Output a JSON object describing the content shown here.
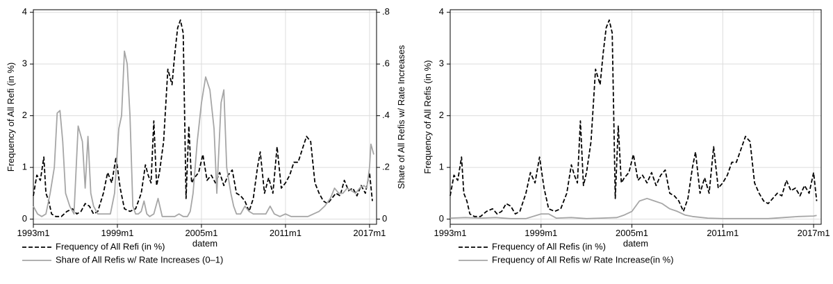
{
  "chart_data": [
    {
      "type": "line",
      "xlabel": "datem",
      "ylabel": "Frequency of All Refi (in %)",
      "ylabel_right": "Share of All Refis w/ Rate Increases",
      "xlim": [
        1993.0,
        2017.5
      ],
      "ylim": [
        -0.1,
        4.05
      ],
      "ylim_right": [
        -0.02,
        0.81
      ],
      "xticks": [
        1993,
        1999,
        2005,
        2011,
        2017
      ],
      "xtick_labels": [
        "1993m1",
        "1999m1",
        "2005m1",
        "2011m1",
        "2017m1"
      ],
      "yticks": [
        0,
        1,
        2,
        3,
        4
      ],
      "ytick_labels": [
        "0",
        "1",
        "2",
        "3",
        "4"
      ],
      "yticks_right": [
        0,
        0.2,
        0.4,
        0.6,
        0.8
      ],
      "ytick_labels_right": [
        "0",
        ".2",
        ".4",
        ".6",
        ".8"
      ],
      "grid": true,
      "legend_position": "bottom-left",
      "series": [
        {
          "name": "Frequency of All Refi (in %)",
          "axis": "left",
          "style": "dashed",
          "color": "#000000",
          "x": [
            1993.0,
            1993.25,
            1993.5,
            1993.75,
            1993.9,
            1994.1,
            1994.3,
            1994.6,
            1995.0,
            1995.4,
            1995.8,
            1996.1,
            1996.4,
            1996.7,
            1997.0,
            1997.3,
            1997.6,
            1998.0,
            1998.3,
            1998.6,
            1998.9,
            1999.2,
            1999.5,
            1999.9,
            2000.3,
            2000.7,
            2001.0,
            2001.2,
            2001.4,
            2001.6,
            2001.8,
            2002.0,
            2002.3,
            2002.6,
            2002.9,
            2003.1,
            2003.3,
            2003.5,
            2003.7,
            2003.9,
            2004.1,
            2004.3,
            2004.5,
            2004.8,
            2005.1,
            2005.4,
            2005.7,
            2006.0,
            2006.3,
            2006.6,
            2006.9,
            2007.2,
            2007.5,
            2007.8,
            2008.1,
            2008.4,
            2008.7,
            2009.0,
            2009.2,
            2009.5,
            2009.8,
            2010.1,
            2010.4,
            2010.7,
            2011.0,
            2011.3,
            2011.6,
            2011.9,
            2012.2,
            2012.5,
            2012.8,
            2013.1,
            2013.4,
            2013.7,
            2014.0,
            2014.3,
            2014.6,
            2014.9,
            2015.2,
            2015.5,
            2015.8,
            2016.1,
            2016.4,
            2016.7,
            2017.0,
            2017.2
          ],
          "y": [
            0.45,
            0.85,
            0.75,
            1.2,
            0.5,
            0.35,
            0.1,
            0.05,
            0.05,
            0.15,
            0.2,
            0.1,
            0.15,
            0.3,
            0.25,
            0.1,
            0.15,
            0.5,
            0.9,
            0.7,
            1.2,
            0.6,
            0.2,
            0.15,
            0.2,
            0.5,
            1.05,
            0.85,
            0.7,
            1.9,
            0.65,
            0.9,
            1.5,
            2.9,
            2.6,
            3.2,
            3.7,
            3.85,
            3.6,
            0.4,
            1.8,
            0.7,
            0.8,
            0.9,
            1.25,
            0.75,
            0.85,
            0.7,
            0.9,
            0.65,
            0.85,
            0.95,
            0.5,
            0.45,
            0.35,
            0.15,
            0.4,
            1.0,
            1.3,
            0.5,
            0.8,
            0.5,
            1.4,
            0.6,
            0.7,
            0.85,
            1.1,
            1.1,
            1.35,
            1.6,
            1.5,
            0.7,
            0.5,
            0.35,
            0.3,
            0.4,
            0.5,
            0.45,
            0.75,
            0.55,
            0.6,
            0.45,
            0.65,
            0.5,
            0.9,
            0.35
          ]
        },
        {
          "name": "Share of All Refis w/ Rate Increases (0–1)",
          "axis": "right",
          "style": "solid",
          "color": "#a6a6a6",
          "x": [
            1993.0,
            1993.3,
            1993.6,
            1993.9,
            1994.2,
            1994.5,
            1994.7,
            1994.9,
            1995.1,
            1995.3,
            1995.6,
            1995.9,
            1996.2,
            1996.5,
            1996.7,
            1996.9,
            1997.1,
            1997.3,
            1997.6,
            1997.9,
            1998.2,
            1998.5,
            1998.8,
            1999.1,
            1999.3,
            1999.5,
            1999.7,
            1999.9,
            2000.1,
            2000.3,
            2000.5,
            2000.7,
            2000.9,
            2001.1,
            2001.3,
            2001.6,
            2001.9,
            2002.2,
            2002.5,
            2002.8,
            2003.1,
            2003.4,
            2003.7,
            2004.0,
            2004.2,
            2004.4,
            2004.7,
            2005.0,
            2005.3,
            2005.6,
            2005.9,
            2006.1,
            2006.4,
            2006.6,
            2006.8,
            2007.1,
            2007.3,
            2007.5,
            2007.8,
            2008.1,
            2008.4,
            2008.7,
            2009.0,
            2009.3,
            2009.6,
            2009.9,
            2010.2,
            2010.6,
            2011.0,
            2011.4,
            2011.8,
            2012.2,
            2012.6,
            2013.0,
            2013.4,
            2013.8,
            2014.2,
            2014.5,
            2014.8,
            2015.1,
            2015.4,
            2015.7,
            2016.0,
            2016.3,
            2016.6,
            2016.8,
            2017.0,
            2017.1,
            2017.3
          ],
          "y": [
            0.05,
            0.02,
            0.01,
            0.02,
            0.1,
            0.2,
            0.41,
            0.42,
            0.3,
            0.1,
            0.05,
            0.02,
            0.36,
            0.3,
            0.12,
            0.32,
            0.1,
            0.05,
            0.02,
            0.02,
            0.02,
            0.02,
            0.1,
            0.35,
            0.4,
            0.65,
            0.6,
            0.4,
            0.05,
            0.02,
            0.02,
            0.03,
            0.07,
            0.02,
            0.01,
            0.02,
            0.08,
            0.01,
            0.01,
            0.01,
            0.01,
            0.02,
            0.01,
            0.01,
            0.03,
            0.1,
            0.3,
            0.45,
            0.55,
            0.5,
            0.35,
            0.1,
            0.45,
            0.5,
            0.2,
            0.1,
            0.05,
            0.02,
            0.02,
            0.05,
            0.03,
            0.02,
            0.02,
            0.02,
            0.02,
            0.05,
            0.02,
            0.01,
            0.02,
            0.01,
            0.01,
            0.01,
            0.01,
            0.02,
            0.03,
            0.05,
            0.08,
            0.12,
            0.1,
            0.1,
            0.12,
            0.11,
            0.1,
            0.12,
            0.13,
            0.12,
            0.2,
            0.29,
            0.25
          ]
        }
      ]
    },
    {
      "type": "line",
      "xlabel": "datem",
      "ylabel": "Frequency of All Refis (in %)",
      "xlim": [
        1993.0,
        2017.5
      ],
      "ylim": [
        -0.1,
        4.05
      ],
      "xticks": [
        1993,
        1999,
        2005,
        2011,
        2017
      ],
      "xtick_labels": [
        "1993m1",
        "1999m1",
        "2005m1",
        "2011m1",
        "2017m1"
      ],
      "yticks": [
        0,
        1,
        2,
        3,
        4
      ],
      "ytick_labels": [
        "0",
        "1",
        "2",
        "3",
        "4"
      ],
      "grid": true,
      "legend_position": "bottom-left",
      "series": [
        {
          "name": "Frequency of All Refis (in %)",
          "axis": "left",
          "style": "dashed",
          "color": "#000000",
          "x": [
            1993.0,
            1993.25,
            1993.5,
            1993.75,
            1993.9,
            1994.1,
            1994.3,
            1994.6,
            1995.0,
            1995.4,
            1995.8,
            1996.1,
            1996.4,
            1996.7,
            1997.0,
            1997.3,
            1997.6,
            1998.0,
            1998.3,
            1998.6,
            1998.9,
            1999.2,
            1999.5,
            1999.9,
            2000.3,
            2000.7,
            2001.0,
            2001.2,
            2001.4,
            2001.6,
            2001.8,
            2002.0,
            2002.3,
            2002.6,
            2002.9,
            2003.1,
            2003.3,
            2003.5,
            2003.7,
            2003.9,
            2004.1,
            2004.3,
            2004.5,
            2004.8,
            2005.1,
            2005.4,
            2005.7,
            2006.0,
            2006.3,
            2006.6,
            2006.9,
            2007.2,
            2007.5,
            2007.8,
            2008.1,
            2008.4,
            2008.7,
            2009.0,
            2009.2,
            2009.5,
            2009.8,
            2010.1,
            2010.4,
            2010.7,
            2011.0,
            2011.3,
            2011.6,
            2011.9,
            2012.2,
            2012.5,
            2012.8,
            2013.1,
            2013.4,
            2013.7,
            2014.0,
            2014.3,
            2014.6,
            2014.9,
            2015.2,
            2015.5,
            2015.8,
            2016.1,
            2016.4,
            2016.7,
            2017.0,
            2017.2
          ],
          "y": [
            0.45,
            0.85,
            0.75,
            1.2,
            0.5,
            0.35,
            0.1,
            0.05,
            0.05,
            0.15,
            0.2,
            0.1,
            0.15,
            0.3,
            0.25,
            0.1,
            0.15,
            0.5,
            0.9,
            0.7,
            1.2,
            0.6,
            0.2,
            0.15,
            0.2,
            0.5,
            1.05,
            0.85,
            0.7,
            1.9,
            0.65,
            0.9,
            1.5,
            2.9,
            2.6,
            3.2,
            3.7,
            3.85,
            3.6,
            0.4,
            1.8,
            0.7,
            0.8,
            0.9,
            1.25,
            0.75,
            0.85,
            0.7,
            0.9,
            0.65,
            0.85,
            0.95,
            0.5,
            0.45,
            0.35,
            0.15,
            0.4,
            1.0,
            1.3,
            0.5,
            0.8,
            0.5,
            1.4,
            0.6,
            0.7,
            0.85,
            1.1,
            1.1,
            1.35,
            1.6,
            1.5,
            0.7,
            0.5,
            0.35,
            0.3,
            0.4,
            0.5,
            0.45,
            0.75,
            0.55,
            0.6,
            0.45,
            0.65,
            0.5,
            0.9,
            0.35
          ]
        },
        {
          "name": "Frequency of All Refis w/ Rate Increase(in %)",
          "axis": "left",
          "style": "solid",
          "color": "#a6a6a6",
          "x": [
            1993.0,
            1994.0,
            1995.0,
            1996.0,
            1997.0,
            1998.0,
            1999.0,
            1999.5,
            2000.0,
            2001.0,
            2002.0,
            2003.0,
            2004.0,
            2004.5,
            2005.0,
            2005.5,
            2006.0,
            2006.5,
            2007.0,
            2007.5,
            2008.0,
            2008.5,
            2009.0,
            2010.0,
            2011.0,
            2012.0,
            2013.0,
            2014.0,
            2015.0,
            2016.0,
            2017.0,
            2017.2
          ],
          "y": [
            0.02,
            0.03,
            0.02,
            0.03,
            0.01,
            0.01,
            0.1,
            0.1,
            0.02,
            0.03,
            0.01,
            0.02,
            0.03,
            0.08,
            0.15,
            0.35,
            0.4,
            0.35,
            0.3,
            0.2,
            0.15,
            0.08,
            0.05,
            0.02,
            0.01,
            0.01,
            0.01,
            0.01,
            0.03,
            0.05,
            0.06,
            0.07
          ]
        }
      ]
    }
  ]
}
